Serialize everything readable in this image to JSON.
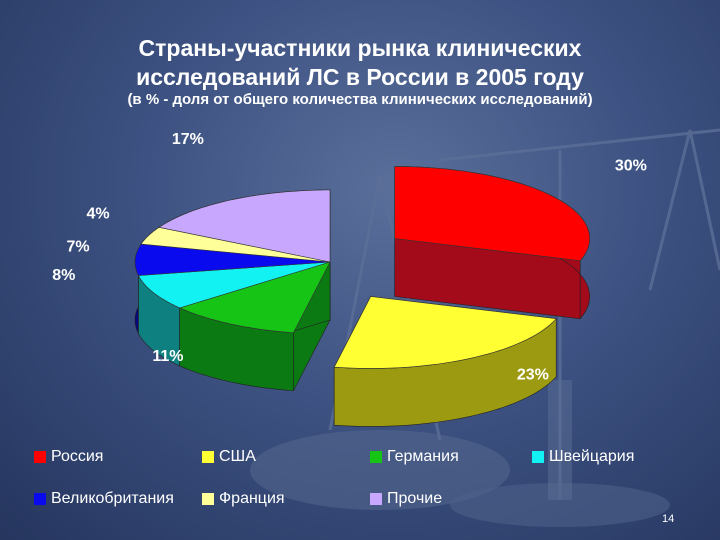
{
  "slide": {
    "title_line1": "Страны-участники рынка клинических",
    "title_line2": "исследований ЛС в России в 2005 году",
    "subtitle": "(в % - доля от общего количества клинических исследований)",
    "page_number": "14"
  },
  "chart_data": {
    "type": "pie",
    "title": "Страны-участники рынка клинических исследований ЛС в России в 2005 году",
    "subtitle": "(в % - доля от общего количества клинических исследований)",
    "legend_position": "bottom",
    "slices": [
      {
        "name": "Россия",
        "value": 30,
        "label": "30%",
        "color": "#ff0000",
        "side": "#a30a1a",
        "exploded": true
      },
      {
        "name": "США",
        "value": 23,
        "label": "23%",
        "color": "#ffff33",
        "side": "#9c9a10",
        "exploded": true
      },
      {
        "name": "Германия",
        "value": 11,
        "label": "11%",
        "color": "#16c416",
        "side": "#0b7a12",
        "exploded": false
      },
      {
        "name": "Швейцария",
        "value": 8,
        "label": "8%",
        "color": "#12f2f2",
        "side": "#0f8080",
        "exploded": false
      },
      {
        "name": "Великобритания",
        "value": 7,
        "label": "7%",
        "color": "#0a0aee",
        "side": "#07077c",
        "exploded": false
      },
      {
        "name": "Франция",
        "value": 4,
        "label": "4%",
        "color": "#ffff99",
        "side": "#9a9a5c",
        "exploded": false
      },
      {
        "name": "Прочие",
        "value": 17,
        "label": "17%",
        "color": "#c8a8ff",
        "side": "#6f5c99",
        "exploded": false
      }
    ]
  },
  "legend": [
    {
      "name": "Россия",
      "color": "#ff0000"
    },
    {
      "name": "США",
      "color": "#ffff33"
    },
    {
      "name": "Германия",
      "color": "#16c416"
    },
    {
      "name": "Швейцария",
      "color": "#12f2f2"
    },
    {
      "name": "Великобритания",
      "color": "#0a0aee"
    },
    {
      "name": "Франция",
      "color": "#ffff99"
    },
    {
      "name": "Прочие",
      "color": "#c8a8ff"
    }
  ]
}
